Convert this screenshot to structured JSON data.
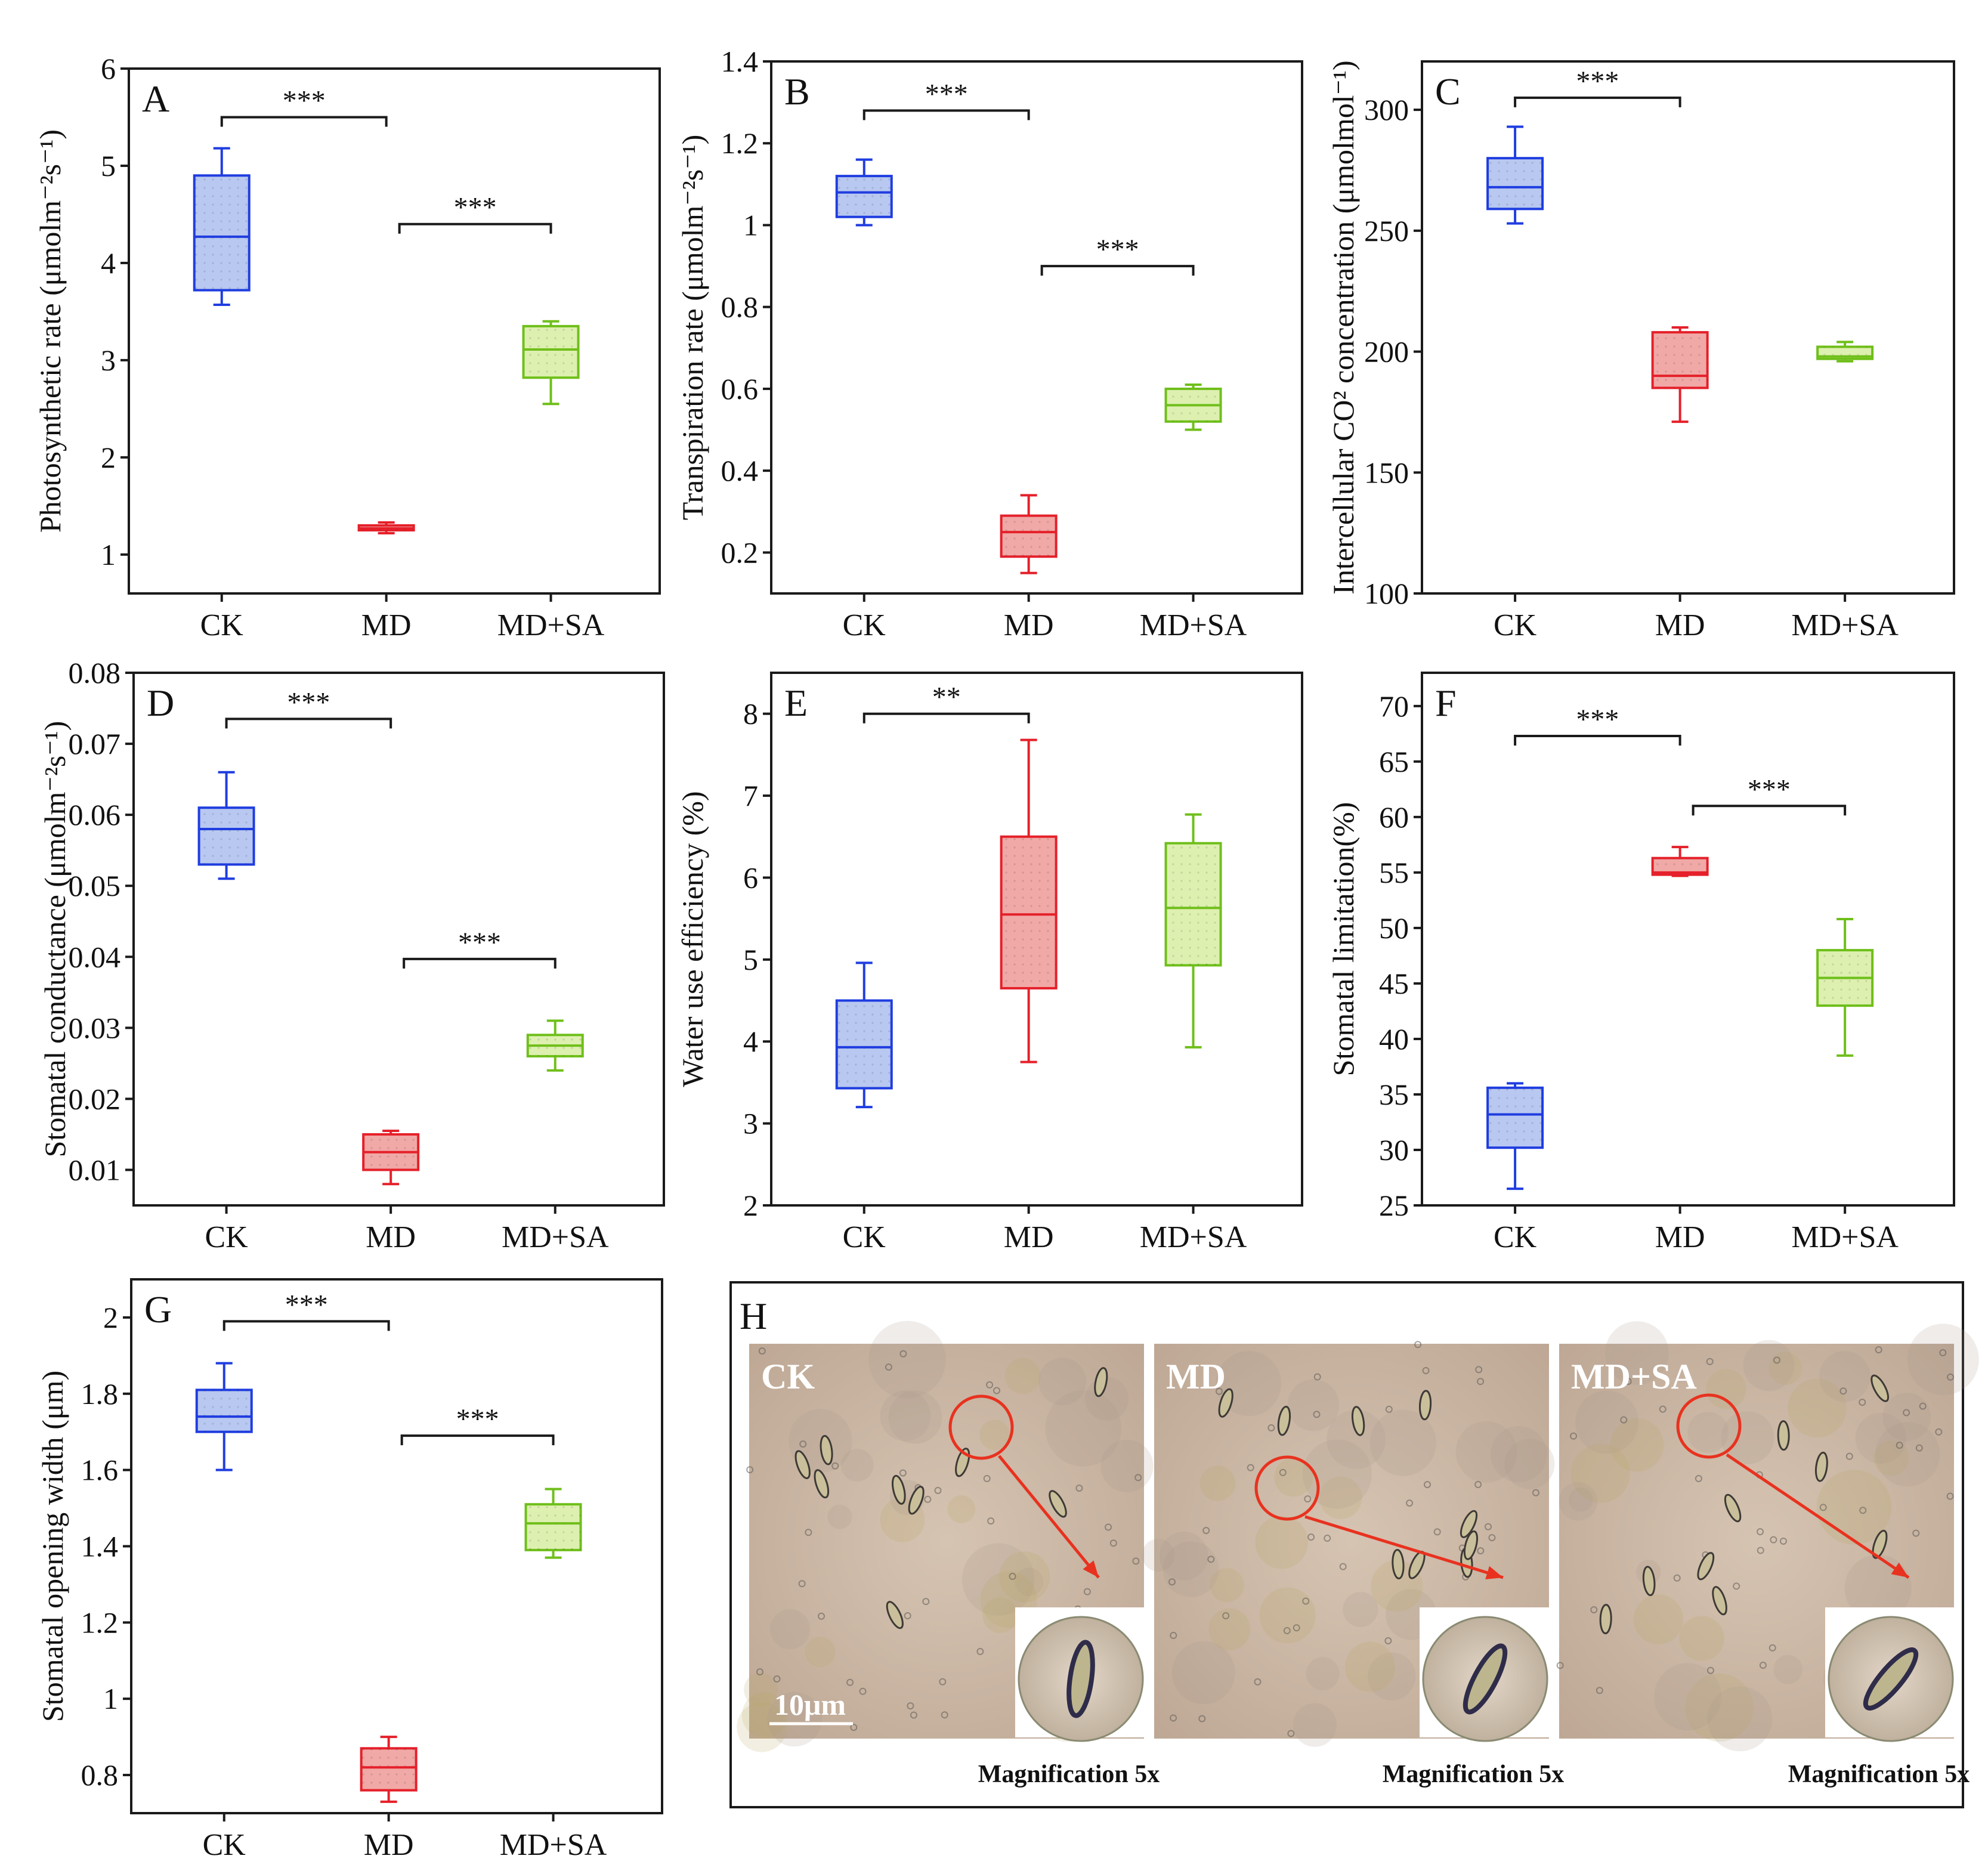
{
  "chart_data": [
    {
      "id": "A",
      "type": "box",
      "letter": "A",
      "ylabel": "Photosynthetic rate (μmolm⁻²s⁻¹)",
      "ylim": [
        0.6,
        6
      ],
      "yticks": [
        1,
        2,
        3,
        4,
        5,
        6
      ],
      "categories": [
        "CK",
        "MD",
        "MD+SA"
      ],
      "boxes": [
        {
          "category": "CK",
          "min": 3.57,
          "q1": 3.72,
          "median": 4.27,
          "q3": 4.9,
          "max": 5.18
        },
        {
          "category": "MD",
          "min": 1.22,
          "q1": 1.25,
          "median": 1.27,
          "q3": 1.3,
          "max": 1.33
        },
        {
          "category": "MD+SA",
          "min": 2.55,
          "q1": 2.82,
          "median": 3.11,
          "q3": 3.35,
          "max": 3.4
        }
      ],
      "significance": [
        {
          "from": "CK",
          "to": "MD",
          "label": "***",
          "y": 5.5
        },
        {
          "from": "MD",
          "to": "MD+SA",
          "label": "***",
          "y": 4.4
        }
      ]
    },
    {
      "id": "B",
      "type": "box",
      "letter": "B",
      "ylabel": "Transpiration rate (μmolm⁻²s⁻¹)",
      "ylim": [
        0.1,
        1.4
      ],
      "yticks": [
        0.2,
        0.4,
        0.6,
        0.8,
        1.0,
        1.2,
        1.4
      ],
      "categories": [
        "CK",
        "MD",
        "MD+SA"
      ],
      "boxes": [
        {
          "category": "CK",
          "min": 1.0,
          "q1": 1.02,
          "median": 1.08,
          "q3": 1.12,
          "max": 1.16
        },
        {
          "category": "MD",
          "min": 0.15,
          "q1": 0.19,
          "median": 0.25,
          "q3": 0.29,
          "max": 0.34
        },
        {
          "category": "MD+SA",
          "min": 0.5,
          "q1": 0.52,
          "median": 0.56,
          "q3": 0.6,
          "max": 0.61
        }
      ],
      "significance": [
        {
          "from": "CK",
          "to": "MD",
          "label": "***",
          "y": 1.28
        },
        {
          "from": "MD",
          "to": "MD+SA",
          "label": "***",
          "y": 0.9
        }
      ]
    },
    {
      "id": "C",
      "type": "box",
      "letter": "C",
      "ylabel": "Intercellular CO² concentration (μmolmol⁻¹)",
      "ylim": [
        100,
        320
      ],
      "yticks": [
        100,
        150,
        200,
        250,
        300
      ],
      "categories": [
        "CK",
        "MD",
        "MD+SA"
      ],
      "boxes": [
        {
          "category": "CK",
          "min": 253,
          "q1": 259,
          "median": 268,
          "q3": 280,
          "max": 293
        },
        {
          "category": "MD",
          "min": 171,
          "q1": 185,
          "median": 190,
          "q3": 208,
          "max": 210
        },
        {
          "category": "MD+SA",
          "min": 196,
          "q1": 197,
          "median": 198,
          "q3": 202,
          "max": 204
        }
      ],
      "significance": [
        {
          "from": "CK",
          "to": "MD",
          "label": "***",
          "y": 305
        }
      ]
    },
    {
      "id": "D",
      "type": "box",
      "letter": "D",
      "ylabel": "Stomatal conductance (μmolm⁻²s⁻¹)",
      "ylim": [
        0.005,
        0.08
      ],
      "yticks": [
        0.01,
        0.02,
        0.03,
        0.04,
        0.05,
        0.06,
        0.07,
        0.08
      ],
      "categories": [
        "CK",
        "MD",
        "MD+SA"
      ],
      "boxes": [
        {
          "category": "CK",
          "min": 0.051,
          "q1": 0.053,
          "median": 0.058,
          "q3": 0.061,
          "max": 0.066
        },
        {
          "category": "MD",
          "min": 0.008,
          "q1": 0.01,
          "median": 0.0125,
          "q3": 0.015,
          "max": 0.0155
        },
        {
          "category": "MD+SA",
          "min": 0.024,
          "q1": 0.026,
          "median": 0.0275,
          "q3": 0.029,
          "max": 0.031
        }
      ],
      "significance": [
        {
          "from": "CK",
          "to": "MD",
          "label": "***",
          "y": 0.0735
        },
        {
          "from": "MD",
          "to": "MD+SA",
          "label": "***",
          "y": 0.0397
        }
      ]
    },
    {
      "id": "E",
      "type": "box",
      "letter": "E",
      "ylabel": "Water use efficiency (%)",
      "ylim": [
        2,
        8.5
      ],
      "yticks": [
        2,
        3,
        4,
        5,
        6,
        7,
        8
      ],
      "categories": [
        "CK",
        "MD",
        "MD+SA"
      ],
      "boxes": [
        {
          "category": "CK",
          "min": 3.2,
          "q1": 3.43,
          "median": 3.93,
          "q3": 4.5,
          "max": 4.96
        },
        {
          "category": "MD",
          "min": 3.75,
          "q1": 4.65,
          "median": 5.55,
          "q3": 6.5,
          "max": 7.68
        },
        {
          "category": "MD+SA",
          "min": 3.93,
          "q1": 4.93,
          "median": 5.63,
          "q3": 6.42,
          "max": 6.77
        }
      ],
      "significance": [
        {
          "from": "CK",
          "to": "MD",
          "label": "**",
          "y": 8.0
        }
      ]
    },
    {
      "id": "F",
      "type": "box",
      "letter": "F",
      "ylabel": "Stomatal limitation(%)",
      "ylim": [
        25,
        73
      ],
      "yticks": [
        25,
        30,
        35,
        40,
        45,
        50,
        55,
        60,
        65,
        70
      ],
      "categories": [
        "CK",
        "MD",
        "MD+SA"
      ],
      "boxes": [
        {
          "category": "CK",
          "min": 26.5,
          "q1": 30.2,
          "median": 33.2,
          "q3": 35.6,
          "max": 36
        },
        {
          "category": "MD",
          "min": 54.7,
          "q1": 54.8,
          "median": 55,
          "q3": 56.3,
          "max": 57.3
        },
        {
          "category": "MD+SA",
          "min": 38.5,
          "q1": 43,
          "median": 45.5,
          "q3": 48,
          "max": 50.8
        }
      ],
      "significance": [
        {
          "from": "CK",
          "to": "MD",
          "label": "***",
          "y": 67.3
        },
        {
          "from": "MD",
          "to": "MD+SA",
          "label": "***",
          "y": 61
        }
      ]
    },
    {
      "id": "G",
      "type": "box",
      "letter": "G",
      "ylabel": "Stomatal opening width (μm)",
      "ylim": [
        0.7,
        2.1
      ],
      "yticks": [
        0.8,
        1.0,
        1.2,
        1.4,
        1.6,
        1.8,
        2.0
      ],
      "categories": [
        "CK",
        "MD",
        "MD+SA"
      ],
      "boxes": [
        {
          "category": "CK",
          "min": 1.6,
          "q1": 1.7,
          "median": 1.74,
          "q3": 1.81,
          "max": 1.88
        },
        {
          "category": "MD",
          "min": 0.73,
          "q1": 0.76,
          "median": 0.82,
          "q3": 0.87,
          "max": 0.9
        },
        {
          "category": "MD+SA",
          "min": 1.37,
          "q1": 1.39,
          "median": 1.46,
          "q3": 1.51,
          "max": 1.55
        }
      ],
      "significance": [
        {
          "from": "CK",
          "to": "MD",
          "label": "***",
          "y": 1.99
        },
        {
          "from": "MD",
          "to": "MD+SA",
          "label": "***",
          "y": 1.69
        }
      ]
    }
  ],
  "series_colors": {
    "CK": {
      "stroke": "#1f3de0",
      "fill": "#b8c8f0"
    },
    "MD": {
      "stroke": "#e5202a",
      "fill": "#f0a9a6"
    },
    "MD+SA": {
      "stroke": "#6fbf1a",
      "fill": "#ddf0b0"
    }
  },
  "panel_h": {
    "letter": "H",
    "images": [
      {
        "label": "CK",
        "magnification": "Magnification 5x"
      },
      {
        "label": "MD",
        "magnification": "Magnification 5x"
      },
      {
        "label": "MD+SA",
        "magnification": "Magnification 5x"
      }
    ],
    "scale_bar": "10μm"
  }
}
